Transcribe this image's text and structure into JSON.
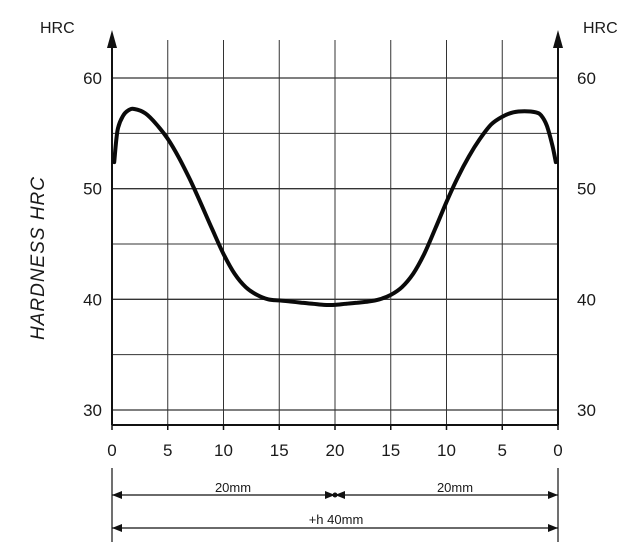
{
  "chart_data": {
    "type": "line",
    "ylabel": "HARDNESS HRC",
    "y_unit_left": "HRC",
    "y_unit_right": "HRC",
    "ylim": [
      29,
      63
    ],
    "y_ticks": [
      30,
      40,
      50,
      60
    ],
    "x_tick_labels": [
      "0",
      "5",
      "10",
      "15",
      "20",
      "15",
      "10",
      "5",
      "0"
    ],
    "x_positions_mm": [
      0,
      5,
      10,
      15,
      20,
      25,
      30,
      35,
      40
    ],
    "xlim": [
      0,
      40
    ],
    "grid": true,
    "series": [
      {
        "x": [
          0.2,
          0.5,
          1,
          1.5,
          2,
          3,
          4,
          5,
          6,
          7,
          8,
          9,
          10,
          11,
          12,
          13,
          14,
          15,
          16,
          17,
          18,
          19,
          20,
          21,
          22,
          23,
          24,
          25,
          26,
          27,
          28,
          29,
          30,
          31,
          32,
          33,
          34,
          35,
          36,
          37,
          38,
          38.5,
          39,
          39.5,
          39.8
        ],
        "y": [
          52.4,
          55.3,
          56.6,
          57.1,
          57.2,
          56.8,
          55.8,
          54.5,
          52.8,
          50.8,
          48.6,
          46.3,
          44.1,
          42.3,
          41.1,
          40.4,
          40.0,
          39.9,
          39.8,
          39.7,
          39.6,
          39.5,
          39.5,
          39.6,
          39.7,
          39.8,
          40.0,
          40.4,
          41.1,
          42.3,
          44.1,
          46.4,
          48.8,
          51.0,
          52.9,
          54.5,
          55.8,
          56.5,
          56.9,
          57.0,
          56.9,
          56.6,
          55.7,
          53.9,
          52.4
        ]
      }
    ],
    "dimensions": {
      "left_label": "20mm",
      "right_label": "20mm",
      "total_label": "+h 40mm"
    }
  }
}
